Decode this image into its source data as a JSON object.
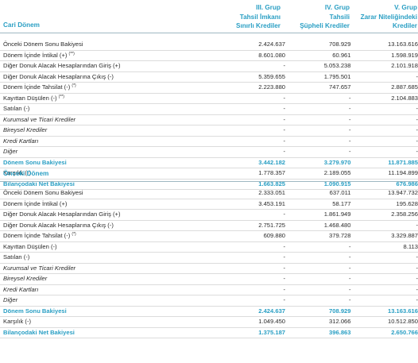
{
  "header": {
    "columns": [
      {
        "group": "III. Grup",
        "sub1": "Tahsil İmkanı",
        "sub2": "Sınırlı Krediler"
      },
      {
        "group": "IV. Grup",
        "sub1": "Tahsili",
        "sub2": "Şüpheli Krediler"
      },
      {
        "group": "V. Grup",
        "sub1": "Zarar Niteliğindeki",
        "sub2": "Krediler"
      }
    ]
  },
  "current": {
    "title": "Cari Dönem",
    "rows": [
      {
        "label": "Önceki Dönem Sonu Bakiyesi",
        "note": "",
        "v": [
          "2.424.637",
          "708.929",
          "13.163.616"
        ],
        "style": ""
      },
      {
        "label": "Dönem İçinde İntikal (+)",
        "note": "(**)",
        "v": [
          "8.601.080",
          "60.961",
          "1.598.919"
        ],
        "style": ""
      },
      {
        "label": "Diğer Donuk Alacak Hesaplarından Giriş (+)",
        "note": "",
        "v": [
          "-",
          "5.053.238",
          "2.101.918"
        ],
        "style": ""
      },
      {
        "label": "Diğer Donuk Alacak Hesaplarına Çıkış (-)",
        "note": "",
        "v": [
          "5.359.655",
          "1.795.501",
          "-"
        ],
        "style": ""
      },
      {
        "label": "Dönem İçinde Tahsilat (-)",
        "note": "(*)",
        "v": [
          "2.223.880",
          "747.657",
          "2.887.685"
        ],
        "style": ""
      },
      {
        "label": "Kayıttan Düşülen (-)",
        "note": "(**)",
        "v": [
          "-",
          "-",
          "2.104.883"
        ],
        "style": ""
      },
      {
        "label": "Satılan (-)",
        "note": "",
        "v": [
          "-",
          "-",
          "-"
        ],
        "style": ""
      },
      {
        "label": "Kurumsal ve Ticari Krediler",
        "note": "",
        "v": [
          "-",
          "-",
          "-"
        ],
        "style": "italic"
      },
      {
        "label": "Bireysel Krediler",
        "note": "",
        "v": [
          "-",
          "-",
          "-"
        ],
        "style": "italic"
      },
      {
        "label": "Kredi Kartları",
        "note": "",
        "v": [
          "-",
          "-",
          "-"
        ],
        "style": "italic"
      },
      {
        "label": "Diğer",
        "note": "",
        "v": [
          "-",
          "-",
          "-"
        ],
        "style": "italic"
      },
      {
        "label": "Dönem Sonu Bakiyesi",
        "note": "",
        "v": [
          "3.442.182",
          "3.279.970",
          "11.871.885"
        ],
        "style": "bold total"
      },
      {
        "label": "Karşılık (-)",
        "note": "",
        "v": [
          "1.778.357",
          "2.189.055",
          "11.194.899"
        ],
        "style": ""
      },
      {
        "label": "Bilançodaki Net Bakiyesi",
        "note": "",
        "v": [
          "1.663.825",
          "1.090.915",
          "676.986"
        ],
        "style": "bold"
      }
    ]
  },
  "previous": {
    "title": "Önceki Dönem",
    "rows": [
      {
        "label": "Önceki Dönem Sonu Bakiyesi",
        "note": "",
        "v": [
          "2.333.051",
          "637.011",
          "13.947.732"
        ],
        "style": ""
      },
      {
        "label": "Dönem İçinde İntikal (+)",
        "note": "",
        "v": [
          "3.453.191",
          "58.177",
          "195.628"
        ],
        "style": ""
      },
      {
        "label": "Diğer Donuk Alacak Hesaplarından Giriş (+)",
        "note": "",
        "v": [
          "-",
          "1.861.949",
          "2.358.256"
        ],
        "style": ""
      },
      {
        "label": "Diğer Donuk Alacak Hesaplarına Çıkış (-)",
        "note": "",
        "v": [
          "2.751.725",
          "1.468.480",
          "-"
        ],
        "style": ""
      },
      {
        "label": "Dönem İçinde Tahsilat (-)",
        "note": "(*)",
        "v": [
          "609.880",
          "379.728",
          "3.329.887"
        ],
        "style": ""
      },
      {
        "label": "Kayıttan Düşülen (-)",
        "note": "",
        "v": [
          "-",
          "-",
          "8.113"
        ],
        "style": ""
      },
      {
        "label": "Satılan (-)",
        "note": "",
        "v": [
          "-",
          "-",
          "-"
        ],
        "style": ""
      },
      {
        "label": "Kurumsal ve Ticari Krediler",
        "note": "",
        "v": [
          "-",
          "-",
          "-"
        ],
        "style": "italic"
      },
      {
        "label": "Bireysel Krediler",
        "note": "",
        "v": [
          "-",
          "-",
          "-"
        ],
        "style": "italic"
      },
      {
        "label": "Kredi Kartları",
        "note": "",
        "v": [
          "-",
          "-",
          "-"
        ],
        "style": "italic"
      },
      {
        "label": "Diğer",
        "note": "",
        "v": [
          "-",
          "-",
          "-"
        ],
        "style": "italic"
      },
      {
        "label": "Dönem Sonu Bakiyesi",
        "note": "",
        "v": [
          "2.424.637",
          "708.929",
          "13.163.616"
        ],
        "style": "bold total"
      },
      {
        "label": "Karşılık (-)",
        "note": "",
        "v": [
          "1.049.450",
          "312.066",
          "10.512.850"
        ],
        "style": ""
      },
      {
        "label": "Bilançodaki Net Bakiyesi",
        "note": "",
        "v": [
          "1.375.187",
          "396.863",
          "2.650.766"
        ],
        "style": "bold"
      }
    ]
  }
}
